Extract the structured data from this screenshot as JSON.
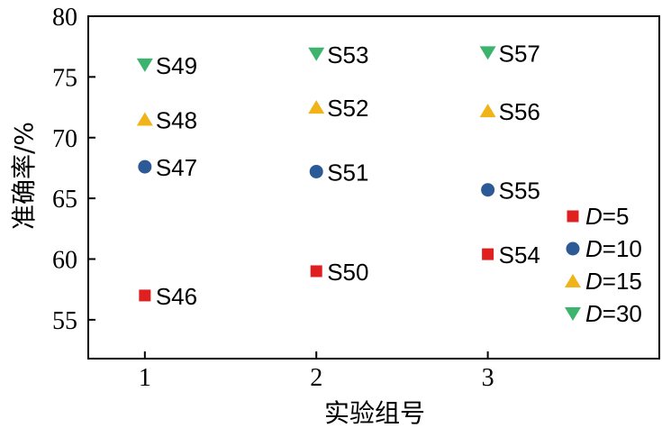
{
  "chart_data": {
    "type": "scatter",
    "title": "",
    "xlabel": "实验组号",
    "ylabel": "准确率/%",
    "xlim": [
      0.67,
      4.0
    ],
    "ylim": [
      51.8,
      80
    ],
    "xticks": [
      1,
      2,
      3
    ],
    "yticks": [
      55,
      60,
      65,
      70,
      75,
      80
    ],
    "grid": false,
    "legend_position": "bottom-right",
    "series": [
      {
        "name": "D=5",
        "name_var": "D",
        "name_rest": "=5",
        "marker": "square",
        "color": "#e02020",
        "points": [
          {
            "x": 1,
            "y": 57.0,
            "label": "S46"
          },
          {
            "x": 2,
            "y": 59.0,
            "label": "S50"
          },
          {
            "x": 3,
            "y": 60.4,
            "label": "S54"
          }
        ]
      },
      {
        "name": "D=10",
        "name_var": "D",
        "name_rest": "=10",
        "marker": "circle",
        "color": "#2b5a96",
        "points": [
          {
            "x": 1,
            "y": 67.6,
            "label": "S47"
          },
          {
            "x": 2,
            "y": 67.2,
            "label": "S51"
          },
          {
            "x": 3,
            "y": 65.7,
            "label": "S55"
          }
        ]
      },
      {
        "name": "D=15",
        "name_var": "D",
        "name_rest": "=15",
        "marker": "triangle-up",
        "color": "#f0b418",
        "points": [
          {
            "x": 1,
            "y": 71.5,
            "label": "S48"
          },
          {
            "x": 2,
            "y": 72.5,
            "label": "S52"
          },
          {
            "x": 3,
            "y": 72.2,
            "label": "S56"
          }
        ]
      },
      {
        "name": "D=30",
        "name_var": "D",
        "name_rest": "=30",
        "marker": "triangle-down",
        "color": "#3cb46e",
        "points": [
          {
            "x": 1,
            "y": 76.0,
            "label": "S49"
          },
          {
            "x": 2,
            "y": 76.9,
            "label": "S53"
          },
          {
            "x": 3,
            "y": 77.0,
            "label": "S57"
          }
        ]
      }
    ]
  }
}
